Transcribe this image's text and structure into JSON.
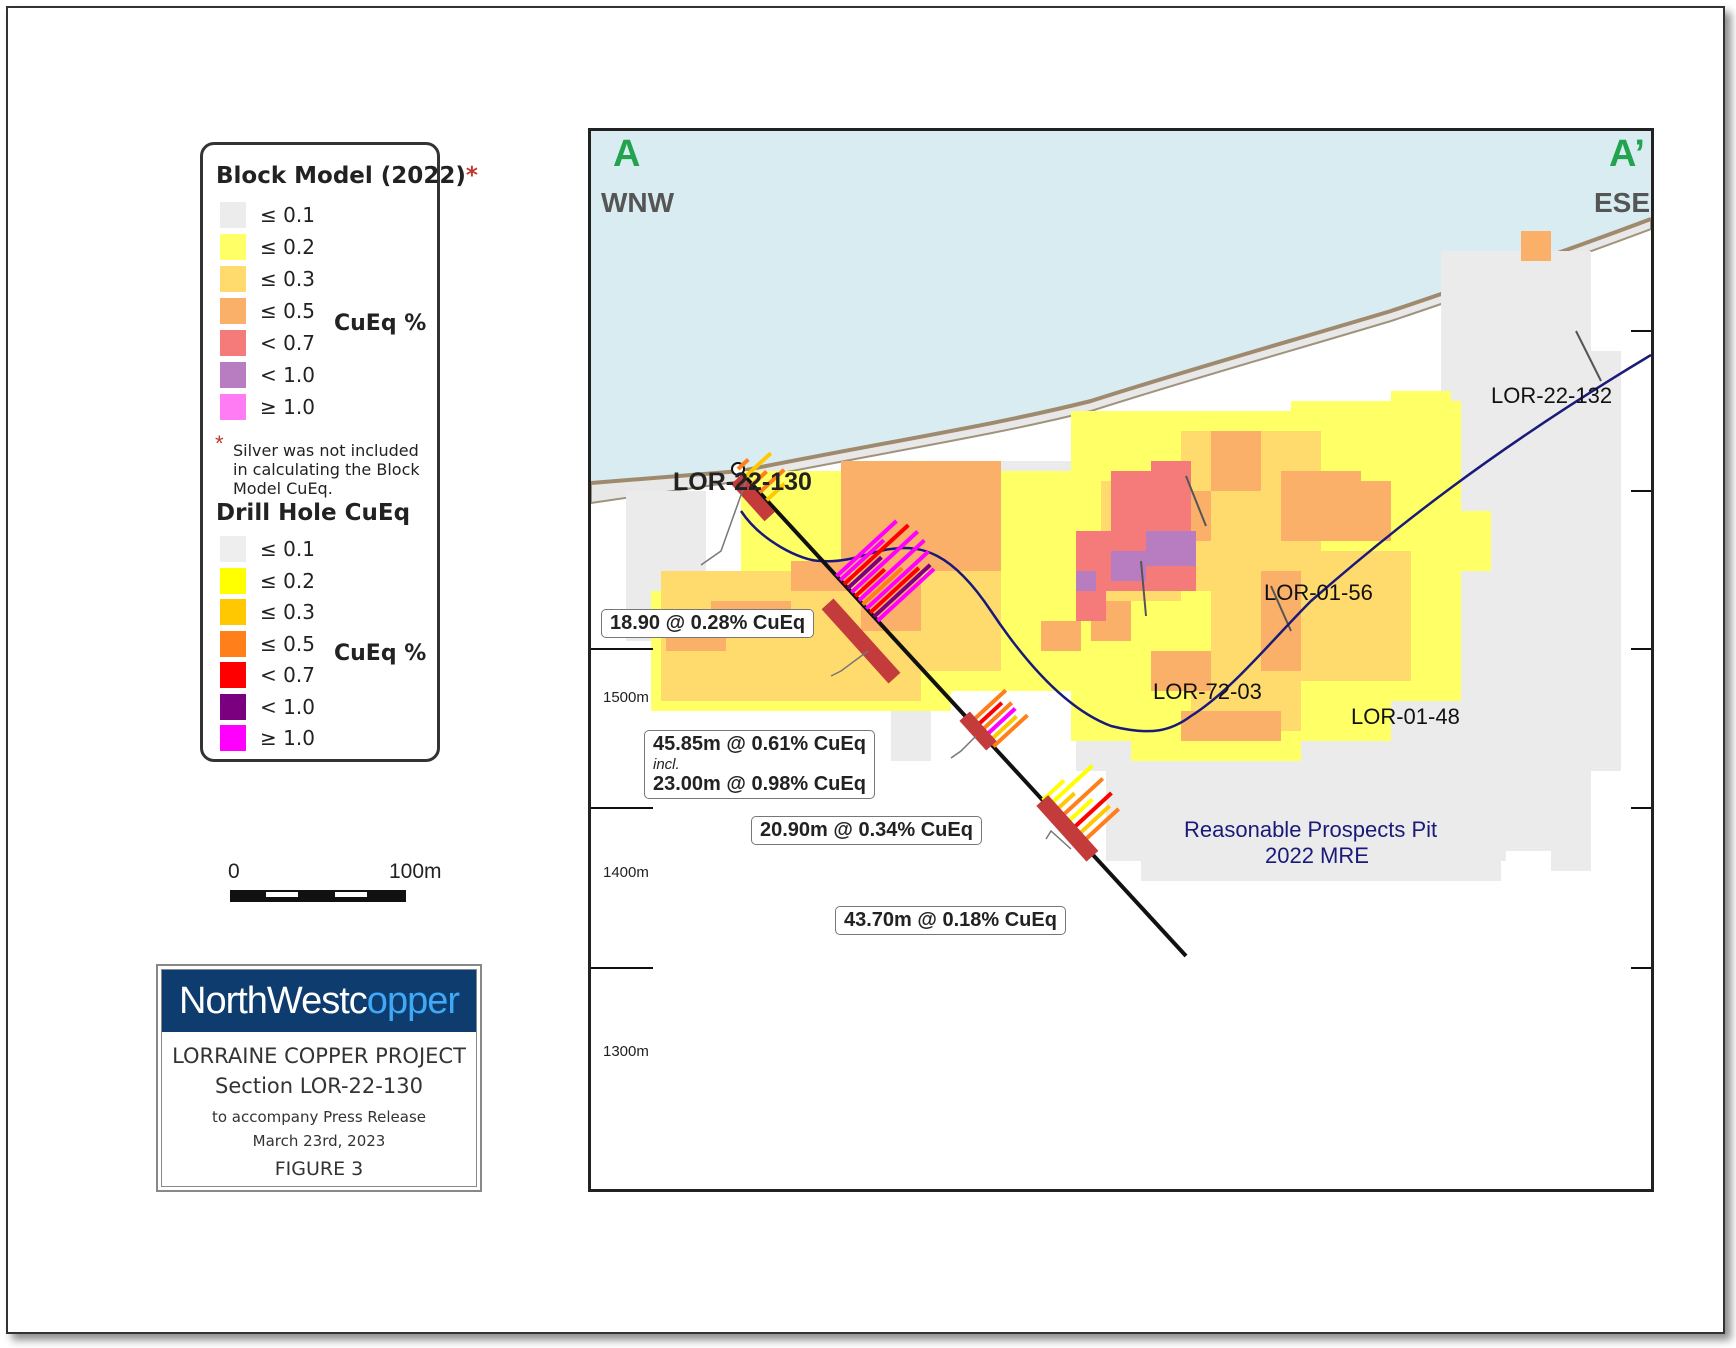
{
  "legend": {
    "block_model_title": "Block Model (2022)",
    "block_model_star": "*",
    "block_model_items": [
      {
        "label": "≤ 0.1",
        "color": "#ececec"
      },
      {
        "label": "≤ 0.2",
        "color": "#ffff66"
      },
      {
        "label": "≤ 0.3",
        "color": "#ffdb6e"
      },
      {
        "label": "≤ 0.5",
        "color": "#fbb06a"
      },
      {
        "label": "< 0.7",
        "color": "#f57b7b"
      },
      {
        "label": "< 1.0",
        "color": "#b87dc0"
      },
      {
        "label": "≥ 1.0",
        "color": "#ff7cf5"
      }
    ],
    "block_model_unit": "CuEq %",
    "note_star": "*",
    "note": "Silver was not included in calculating the Block Model CuEq.",
    "drill_title": "Drill Hole CuEq",
    "drill_items": [
      {
        "label": "≤ 0.1",
        "color": "#eeeeee"
      },
      {
        "label": "≤ 0.2",
        "color": "#ffff00"
      },
      {
        "label": "≤ 0.3",
        "color": "#ffc800"
      },
      {
        "label": "≤ 0.5",
        "color": "#ff7f1a"
      },
      {
        "label": "< 0.7",
        "color": "#ff0000"
      },
      {
        "label": "< 1.0",
        "color": "#7a0080"
      },
      {
        "label": "≥ 1.0",
        "color": "#ff00ff"
      }
    ],
    "drill_unit": "CuEq %"
  },
  "scale_bar": {
    "start": "0",
    "end": "100m"
  },
  "title_block": {
    "logo_part1": "NorthWestc",
    "logo_part2": "pper",
    "logo_dot": "o",
    "project": "LORRAINE COPPER PROJECT",
    "section": "Section LOR-22-130",
    "accompany": "to accompany Press Release",
    "date": "March 23rd, 2023",
    "figure": "FIGURE 3"
  },
  "section": {
    "start_marker": "A",
    "end_marker": "A’",
    "start_dir": "WNW",
    "end_dir": "ESE",
    "elevations": [
      "1500m",
      "1400m",
      "1300m"
    ],
    "hole_name": "LOR-22-130",
    "other_holes": [
      "LOR-22-132",
      "LOR-01-56",
      "LOR-72-03",
      "LOR-01-48"
    ],
    "intercepts": [
      "18.90 @ 0.28% CuEq",
      "45.85m @ 0.61% CuEq",
      "incl.",
      "23.00m @ 0.98% CuEq",
      "20.90m @ 0.34% CuEq",
      "43.70m @ 0.18% CuEq"
    ],
    "pit_label_1": "Reasonable Prospects Pit",
    "pit_label_2": "2022 MRE",
    "sky_color": "#d8ecf2",
    "pit_color": "#1a1a7a"
  }
}
